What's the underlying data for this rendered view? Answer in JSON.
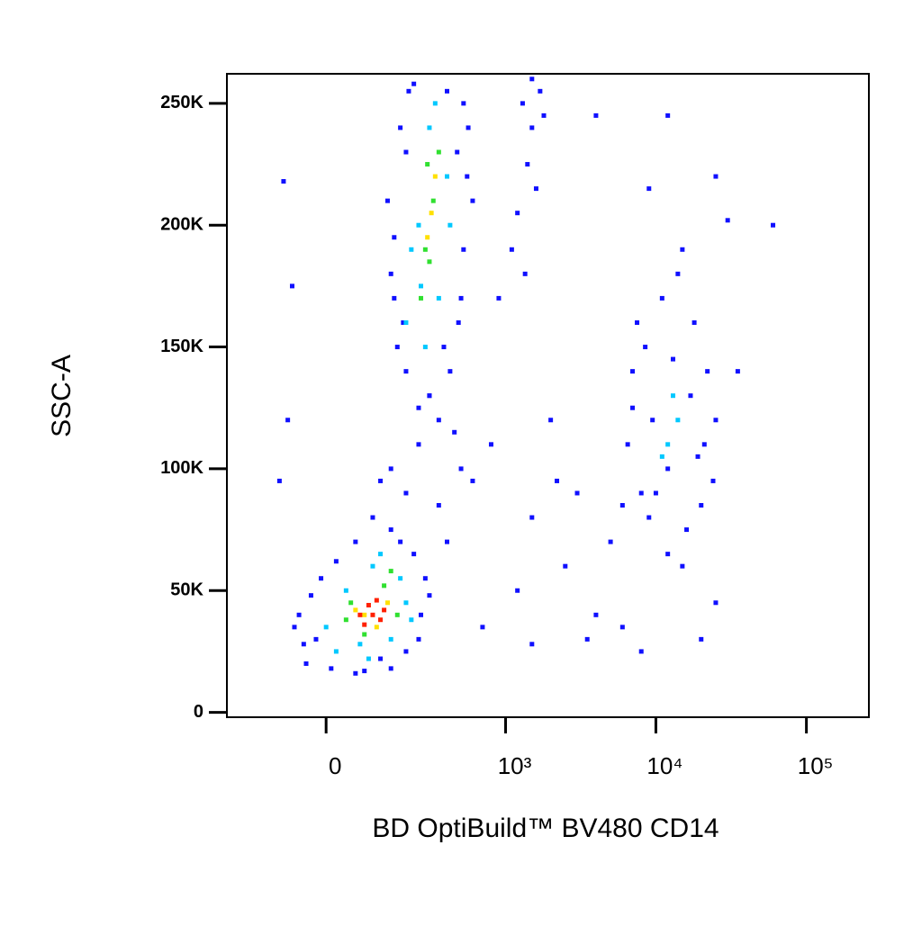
{
  "chart_data": {
    "type": "scatter",
    "x_label": "BD OptiBuild™ BV480 CD14",
    "y_label": "SSC-A",
    "xscale": "biexponential",
    "xlim": [
      -280,
      260000
    ],
    "ylim": [
      -2000,
      262144
    ],
    "xticks": [
      0,
      {
        "value": 1000,
        "label": "10³"
      },
      {
        "value": 10000,
        "label": "10⁴"
      },
      {
        "value": 100000,
        "label": "10⁵"
      }
    ],
    "yticks": [
      {
        "value": 0,
        "label": "0"
      },
      {
        "value": 50000,
        "label": "50K"
      },
      {
        "value": 100000,
        "label": "100K"
      },
      {
        "value": 150000,
        "label": "150K"
      },
      {
        "value": 200000,
        "label": "200K"
      },
      {
        "value": 250000,
        "label": "250K"
      }
    ],
    "series": [
      {
        "color": "#1010ff",
        "x": [
          -40,
          -20,
          -55,
          10,
          60,
          150,
          200,
          260,
          280,
          230,
          150,
          60,
          -10,
          -45,
          120,
          250,
          -30,
          20,
          180,
          300,
          100,
          200,
          150,
          250,
          300,
          120,
          350,
          400,
          80,
          -65,
          150,
          140,
          170,
          200,
          180,
          230,
          400,
          520,
          550,
          520,
          480,
          420,
          300,
          160,
          200,
          600,
          470,
          350,
          250,
          160,
          190,
          560,
          500,
          210,
          380,
          500,
          600,
          450,
          1300,
          1500,
          1700,
          1400,
          1600,
          1200,
          1800,
          1500,
          1100,
          1350,
          900,
          2000,
          3000,
          2500,
          1200,
          4000,
          5000,
          3500,
          800,
          1500,
          2200,
          6000,
          8000,
          20000,
          15000,
          25000,
          60000,
          35000,
          12000,
          9000,
          25000,
          30000,
          4000,
          -90,
          -70,
          -80,
          -100,
          700,
          1500,
          6500,
          7000,
          7500,
          8000,
          9000,
          11000,
          14000,
          18000,
          22000,
          25000,
          24000,
          20000,
          16000,
          12000,
          10000,
          7000,
          15000,
          19000,
          8500,
          12000,
          17000,
          9500,
          13000,
          21000,
          6000
        ],
        "values": [
          20000,
          30000,
          40000,
          18000,
          16000,
          18000,
          25000,
          40000,
          55000,
          65000,
          75000,
          70000,
          55000,
          28000,
          22000,
          30000,
          48000,
          62000,
          70000,
          48000,
          80000,
          90000,
          100000,
          110000,
          130000,
          95000,
          85000,
          70000,
          17000,
          35000,
          180000,
          210000,
          150000,
          140000,
          240000,
          258000,
          255000,
          250000,
          220000,
          190000,
          160000,
          140000,
          130000,
          170000,
          230000,
          210000,
          230000,
          120000,
          125000,
          195000,
          160000,
          240000,
          170000,
          255000,
          150000,
          100000,
          95000,
          115000,
          250000,
          240000,
          255000,
          225000,
          215000,
          205000,
          245000,
          260000,
          190000,
          180000,
          170000,
          120000,
          90000,
          60000,
          50000,
          40000,
          70000,
          30000,
          110000,
          80000,
          95000,
          35000,
          25000,
          30000,
          60000,
          45000,
          200000,
          140000,
          245000,
          215000,
          220000,
          202000,
          245000,
          218000,
          175000,
          120000,
          95000,
          35000,
          28000,
          110000,
          140000,
          160000,
          90000,
          80000,
          170000,
          180000,
          160000,
          140000,
          120000,
          95000,
          85000,
          75000,
          65000,
          90000,
          125000,
          190000,
          105000,
          150000,
          100000,
          130000,
          120000,
          145000,
          110000,
          85000
        ]
      },
      {
        "color": "#00c8ff",
        "x": [
          20,
          40,
          100,
          150,
          200,
          70,
          180,
          120,
          0,
          220,
          90,
          200,
          250,
          300,
          350,
          280,
          220,
          400,
          330,
          260,
          420,
          12000,
          14000,
          11000,
          13000
        ],
        "values": [
          25000,
          50000,
          60000,
          30000,
          45000,
          28000,
          55000,
          65000,
          35000,
          38000,
          22000,
          160000,
          200000,
          240000,
          170000,
          150000,
          190000,
          220000,
          250000,
          175000,
          200000,
          110000,
          120000,
          105000,
          130000
        ]
      },
      {
        "color": "#30e030",
        "x": [
          50,
          130,
          170,
          80,
          40,
          150,
          280,
          320,
          260,
          350,
          300,
          290
        ],
        "values": [
          45000,
          52000,
          40000,
          32000,
          38000,
          58000,
          190000,
          210000,
          170000,
          230000,
          185000,
          225000
        ]
      },
      {
        "color": "#ffe000",
        "x": [
          80,
          140,
          110,
          60,
          310,
          290,
          330
        ],
        "values": [
          40000,
          45000,
          35000,
          42000,
          205000,
          195000,
          220000
        ]
      },
      {
        "color": "#ff2000",
        "x": [
          100,
          90,
          120,
          80,
          110,
          70,
          130
        ],
        "values": [
          40000,
          44000,
          38000,
          36000,
          46000,
          40000,
          42000
        ]
      }
    ]
  }
}
